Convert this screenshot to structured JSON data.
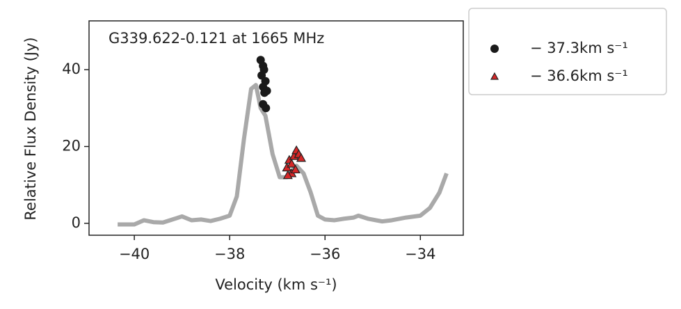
{
  "chart_data": {
    "type": "line",
    "annotation": "G339.622-0.121 at 1665 MHz",
    "x_label": "Velocity (km s⁻¹)",
    "y_label": "Relative Flux Density (Jy)",
    "xlim": [
      -40.95,
      -33.1
    ],
    "ylim": [
      -3.1,
      52.7
    ],
    "xticks": [
      {
        "value": -40,
        "label": "−40"
      },
      {
        "value": -38,
        "label": "−38"
      },
      {
        "value": -36,
        "label": "−36"
      },
      {
        "value": -34,
        "label": "−34"
      }
    ],
    "yticks": [
      0,
      20,
      40
    ],
    "legend": "outside-right",
    "series": [
      {
        "type": "line",
        "color": "#8c8c8c",
        "x": [
          -40.35,
          -40,
          -39.8,
          -39.6,
          -39.4,
          -39.2,
          -39,
          -38.8,
          -38.6,
          -38.4,
          -38.2,
          -38,
          -37.85,
          -37.7,
          -37.55,
          -37.45,
          -37.35,
          -37.25,
          -37.1,
          -36.95,
          -36.8,
          -36.6,
          -36.45,
          -36.3,
          -36.15,
          -36,
          -35.8,
          -35.6,
          -35.4,
          -35.3,
          -35.1,
          -34.8,
          -34.6,
          -34.3,
          -34,
          -33.8,
          -33.6,
          -33.45
        ],
        "values": [
          -0.3,
          -0.3,
          0.8,
          0.3,
          0.2,
          1,
          1.8,
          0.8,
          1,
          0.6,
          1.2,
          2,
          7,
          22,
          35,
          36,
          30,
          28,
          18,
          12,
          12,
          15,
          13,
          8,
          2,
          1,
          0.8,
          1.2,
          1.5,
          2,
          1.2,
          0.5,
          0.8,
          1.5,
          2,
          4,
          8,
          13
        ]
      },
      {
        "type": "scatter",
        "name": "− 37.3km s⁻¹",
        "marker": "circle",
        "color": "#1a1a1a",
        "x": [
          -37.35,
          -37.3,
          -37.28,
          -37.33,
          -37.25,
          -37.3,
          -37.27,
          -37.22,
          -37.3,
          -37.24
        ],
        "values": [
          42.5,
          41,
          40,
          38.5,
          37,
          35.5,
          34,
          34.5,
          31,
          30
        ]
      },
      {
        "type": "scatter",
        "name": "− 36.6km s⁻¹",
        "marker": "triangle",
        "color": "#d62728",
        "x": [
          -36.8,
          -36.75,
          -36.7,
          -36.65,
          -36.6,
          -36.55,
          -36.7,
          -36.62,
          -36.5,
          -36.78
        ],
        "values": [
          14.5,
          16.5,
          13,
          17.5,
          19,
          18,
          15.5,
          14,
          17,
          12.5
        ]
      }
    ]
  }
}
